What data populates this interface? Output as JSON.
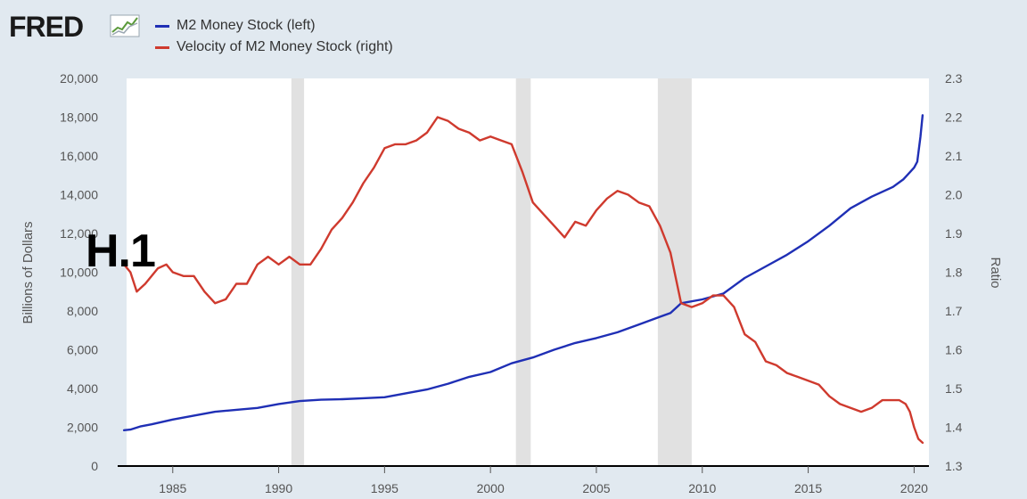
{
  "brand": {
    "logo_text": "FRED",
    "logo_icon": "line-chart-icon"
  },
  "overlay_label": "H.1",
  "colors": {
    "background": "#e1e9f0",
    "plot_bg": "#ffffff",
    "recession": "#e1e1e1",
    "m2": "#1f2fb5",
    "velocity": "#cf3a2e"
  },
  "chart_data": {
    "type": "line",
    "title": "",
    "xlabel": "",
    "ylabel": "Billions of Dollars",
    "y2label": "Ratio",
    "xlim": [
      1982.4,
      2020.7
    ],
    "ylim": [
      0,
      20000
    ],
    "y2lim": [
      1.3,
      2.3
    ],
    "x_ticks": [
      "1985",
      "1990",
      "1995",
      "2000",
      "2005",
      "2010",
      "2015",
      "2020"
    ],
    "y_ticks": [
      "0",
      "2,000",
      "4,000",
      "6,000",
      "8,000",
      "10,000",
      "12,000",
      "14,000",
      "16,000",
      "18,000",
      "20,000"
    ],
    "y2_ticks": [
      "1.3",
      "1.4",
      "1.5",
      "1.6",
      "1.7",
      "1.8",
      "1.9",
      "2.0",
      "2.1",
      "2.2",
      "2.3"
    ],
    "grid": false,
    "legend_position": "top-left",
    "recessions": [
      [
        1990.6,
        1991.2
      ],
      [
        2001.2,
        2001.9
      ],
      [
        2007.9,
        2009.5
      ]
    ],
    "series": [
      {
        "name": "M2 Money Stock (left)",
        "axis": "left",
        "x": [
          1982.7,
          1983.0,
          1983.5,
          1984.0,
          1985.0,
          1986.0,
          1987.0,
          1988.0,
          1989.0,
          1990.0,
          1991.0,
          1992.0,
          1993.0,
          1994.0,
          1995.0,
          1996.0,
          1997.0,
          1998.0,
          1999.0,
          2000.0,
          2001.0,
          2002.0,
          2003.0,
          2004.0,
          2005.0,
          2006.0,
          2007.0,
          2008.0,
          2008.5,
          2009.0,
          2010.0,
          2011.0,
          2011.5,
          2012.0,
          2013.0,
          2014.0,
          2015.0,
          2016.0,
          2017.0,
          2018.0,
          2019.0,
          2019.5,
          2020.0,
          2020.15,
          2020.3,
          2020.4
        ],
        "values": [
          1850,
          1880,
          2050,
          2150,
          2400,
          2600,
          2800,
          2900,
          3000,
          3200,
          3350,
          3420,
          3450,
          3500,
          3550,
          3750,
          3950,
          4250,
          4600,
          4850,
          5300,
          5600,
          6000,
          6350,
          6600,
          6900,
          7300,
          7700,
          7900,
          8400,
          8600,
          8900,
          9300,
          9700,
          10300,
          10900,
          11600,
          12400,
          13300,
          13900,
          14400,
          14800,
          15400,
          15700,
          17000,
          18100
        ]
      },
      {
        "name": "Velocity of M2 Money Stock (right)",
        "axis": "right",
        "x": [
          1982.7,
          1983.0,
          1983.3,
          1983.7,
          1984.3,
          1984.7,
          1985.0,
          1985.5,
          1986.0,
          1986.5,
          1987.0,
          1987.5,
          1988.0,
          1988.5,
          1989.0,
          1989.5,
          1990.0,
          1990.5,
          1991.0,
          1991.5,
          1992.0,
          1992.5,
          1993.0,
          1993.5,
          1994.0,
          1994.5,
          1995.0,
          1995.5,
          1996.0,
          1996.5,
          1997.0,
          1997.5,
          1998.0,
          1998.5,
          1999.0,
          1999.5,
          2000.0,
          2000.5,
          2001.0,
          2001.5,
          2002.0,
          2002.5,
          2003.0,
          2003.5,
          2004.0,
          2004.5,
          2005.0,
          2005.5,
          2006.0,
          2006.5,
          2007.0,
          2007.5,
          2008.0,
          2008.5,
          2009.0,
          2009.5,
          2010.0,
          2010.5,
          2011.0,
          2011.5,
          2012.0,
          2012.5,
          2013.0,
          2013.5,
          2014.0,
          2014.5,
          2015.0,
          2015.5,
          2016.0,
          2016.5,
          2017.0,
          2017.5,
          2018.0,
          2018.5,
          2019.0,
          2019.3,
          2019.6,
          2019.8,
          2020.0,
          2020.2,
          2020.4
        ],
        "values": [
          1.82,
          1.8,
          1.75,
          1.77,
          1.81,
          1.82,
          1.8,
          1.79,
          1.79,
          1.75,
          1.72,
          1.73,
          1.77,
          1.77,
          1.82,
          1.84,
          1.82,
          1.84,
          1.82,
          1.82,
          1.86,
          1.91,
          1.94,
          1.98,
          2.03,
          2.07,
          2.12,
          2.13,
          2.13,
          2.14,
          2.16,
          2.2,
          2.19,
          2.17,
          2.16,
          2.14,
          2.15,
          2.14,
          2.13,
          2.06,
          1.98,
          1.95,
          1.92,
          1.89,
          1.93,
          1.92,
          1.96,
          1.99,
          2.01,
          2.0,
          1.98,
          1.97,
          1.92,
          1.85,
          1.72,
          1.71,
          1.72,
          1.74,
          1.74,
          1.71,
          1.64,
          1.62,
          1.57,
          1.56,
          1.54,
          1.53,
          1.52,
          1.51,
          1.48,
          1.46,
          1.45,
          1.44,
          1.45,
          1.47,
          1.47,
          1.47,
          1.46,
          1.44,
          1.4,
          1.37,
          1.36
        ]
      }
    ]
  }
}
